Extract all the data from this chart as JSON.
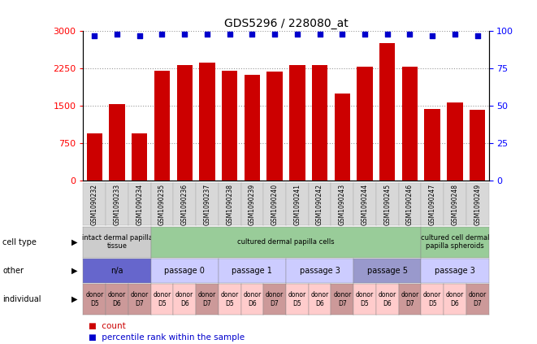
{
  "title": "GDS5296 / 228080_at",
  "samples": [
    "GSM1090232",
    "GSM1090233",
    "GSM1090234",
    "GSM1090235",
    "GSM1090236",
    "GSM1090237",
    "GSM1090238",
    "GSM1090239",
    "GSM1090240",
    "GSM1090241",
    "GSM1090242",
    "GSM1090243",
    "GSM1090244",
    "GSM1090245",
    "GSM1090246",
    "GSM1090247",
    "GSM1090248",
    "GSM1090249"
  ],
  "counts": [
    950,
    1530,
    950,
    2200,
    2310,
    2360,
    2210,
    2120,
    2180,
    2320,
    2310,
    1750,
    2290,
    2750,
    2290,
    1430,
    1570,
    1420
  ],
  "percentiles": [
    97,
    98,
    97,
    98,
    98,
    98,
    98,
    98,
    98,
    98,
    98,
    98,
    98,
    98,
    98,
    97,
    98,
    97
  ],
  "bar_color": "#cc0000",
  "dot_color": "#0000cc",
  "ylim_left": [
    0,
    3000
  ],
  "ylim_right": [
    0,
    100
  ],
  "yticks_left": [
    0,
    750,
    1500,
    2250,
    3000
  ],
  "yticks_right": [
    0,
    25,
    50,
    75,
    100
  ],
  "cell_type_groups": [
    {
      "label": "intact dermal papilla\ntissue",
      "start": 0,
      "end": 3,
      "color": "#cccccc"
    },
    {
      "label": "cultured dermal papilla cells",
      "start": 3,
      "end": 15,
      "color": "#99cc99"
    },
    {
      "label": "cultured cell dermal\npapilla spheroids",
      "start": 15,
      "end": 18,
      "color": "#99cc99"
    }
  ],
  "other_groups": [
    {
      "label": "n/a",
      "start": 0,
      "end": 3,
      "color": "#6666cc"
    },
    {
      "label": "passage 0",
      "start": 3,
      "end": 6,
      "color": "#ccccff"
    },
    {
      "label": "passage 1",
      "start": 6,
      "end": 9,
      "color": "#ccccff"
    },
    {
      "label": "passage 3",
      "start": 9,
      "end": 12,
      "color": "#ccccff"
    },
    {
      "label": "passage 5",
      "start": 12,
      "end": 15,
      "color": "#9999cc"
    },
    {
      "label": "passage 3",
      "start": 15,
      "end": 18,
      "color": "#ccccff"
    }
  ],
  "individual_donors": [
    {
      "label": "donor\nD5",
      "color": "#cc9999"
    },
    {
      "label": "donor\nD6",
      "color": "#cc9999"
    },
    {
      "label": "donor\nD7",
      "color": "#cc9999"
    },
    {
      "label": "donor\nD5",
      "color": "#ffcccc"
    },
    {
      "label": "donor\nD6",
      "color": "#ffcccc"
    },
    {
      "label": "donor\nD7",
      "color": "#cc9999"
    },
    {
      "label": "donor\nD5",
      "color": "#ffcccc"
    },
    {
      "label": "donor\nD6",
      "color": "#ffcccc"
    },
    {
      "label": "donor\nD7",
      "color": "#cc9999"
    },
    {
      "label": "donor\nD5",
      "color": "#ffcccc"
    },
    {
      "label": "donor\nD6",
      "color": "#ffcccc"
    },
    {
      "label": "donor\nD7",
      "color": "#cc9999"
    },
    {
      "label": "donor\nD5",
      "color": "#ffcccc"
    },
    {
      "label": "donor\nD6",
      "color": "#ffcccc"
    },
    {
      "label": "donor\nD7",
      "color": "#cc9999"
    },
    {
      "label": "donor\nD5",
      "color": "#ffcccc"
    },
    {
      "label": "donor\nD6",
      "color": "#ffcccc"
    },
    {
      "label": "donor\nD7",
      "color": "#cc9999"
    }
  ],
  "row_labels": [
    "cell type",
    "other",
    "individual"
  ],
  "legend_count_label": "count",
  "legend_pct_label": "percentile rank within the sample",
  "gridline_color": "#999999",
  "bg_color": "#ffffff",
  "chart_bg": "#ffffff"
}
